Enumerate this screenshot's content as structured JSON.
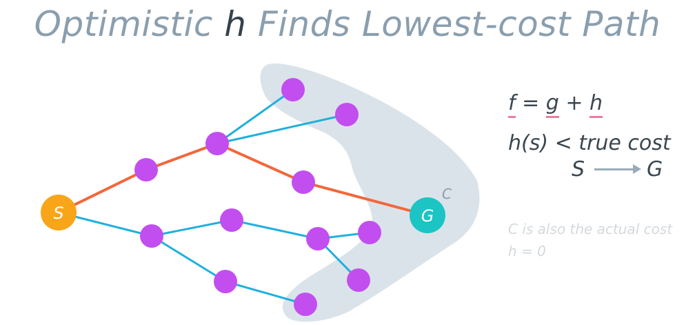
{
  "title": {
    "before": "Optimistic ",
    "variable": "h",
    "after": " Finds Lowest-cost Path"
  },
  "equations": {
    "f_line": {
      "f": "f",
      "eq": " = ",
      "g": "g",
      "plus": " + ",
      "h": "h"
    },
    "h_line": "h(s) < true cost",
    "from": "S",
    "to": "G"
  },
  "notes": {
    "line1": "C is also the actual cost",
    "line2": "h = 0"
  },
  "graph": {
    "start_label": "S",
    "goal_label": "G",
    "contour_label": "C",
    "colors": {
      "start": "#f9a51a",
      "goal": "#1cc4c4",
      "node": "#c24ef0",
      "edge": "#1fb0dc",
      "path": "#f2673a",
      "contour": "#dbe3ea",
      "contour_label": "#8a9eae"
    }
  }
}
